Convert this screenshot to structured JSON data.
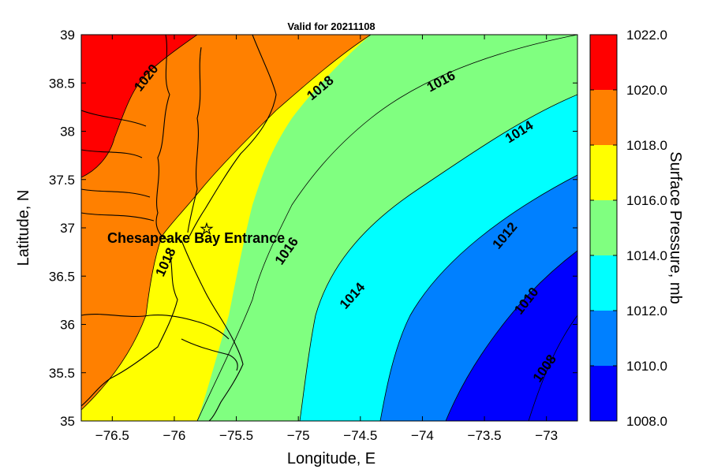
{
  "title": "Valid for 20211108",
  "xlabel": "Longitude, E",
  "ylabel": "Latitude, N",
  "colorbar_label": "Surface Pressure, mb",
  "xticks": [
    "-76.5",
    "-76",
    "-75.5",
    "-75",
    "-74.5",
    "-74",
    "-73.5",
    "-73"
  ],
  "yticks": [
    "39",
    "38.5",
    "38",
    "37.5",
    "37",
    "36.5",
    "36",
    "35.5",
    "35"
  ],
  "colorbar_ticks": [
    "1022.0",
    "1020.0",
    "1018.0",
    "1016.0",
    "1014.0",
    "1012.0",
    "1010.0",
    "1008.0"
  ],
  "colorbar_colors": [
    "#ff0000",
    "#ff8000",
    "#ffff00",
    "#80ff80",
    "#00ffff",
    "#0080ff",
    "#0000ff"
  ],
  "contour_labels": {
    "c1020": "1020",
    "c1018_north": "1018",
    "c1018_south": "1018",
    "c1016_north": "1016",
    "c1016_south": "1016",
    "c1014_north": "1014",
    "c1014_south": "1014",
    "c1012": "1012",
    "c1010": "1010",
    "c1008": "1008"
  },
  "marker": {
    "symbol": "☆",
    "label": "Chesapeake Bay Entrance"
  },
  "map_extent": {
    "lon": [
      -76.75,
      -72.75
    ],
    "lat": [
      35,
      39
    ]
  }
}
